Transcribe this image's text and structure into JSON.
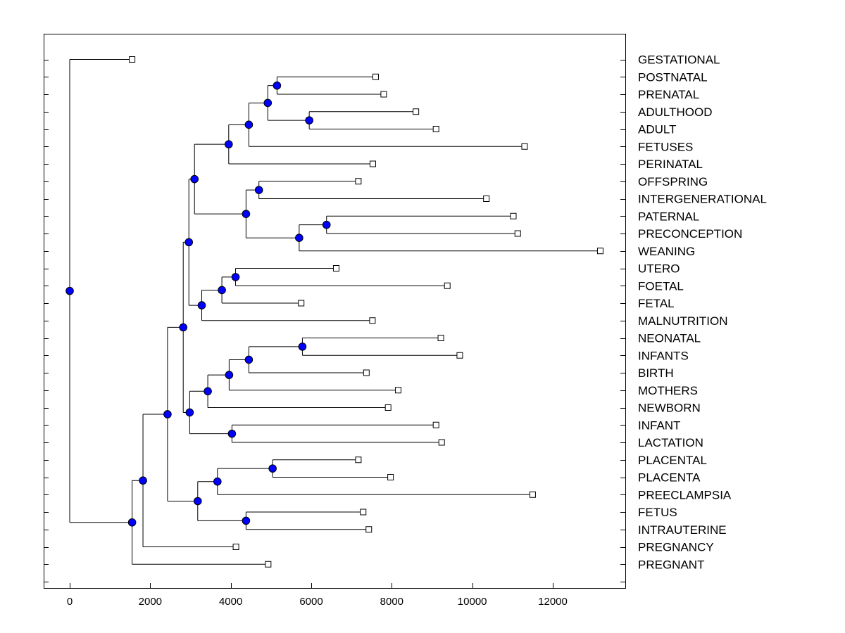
{
  "chart_data": {
    "type": "dendrogram",
    "title": "",
    "xlabel": "",
    "ylabel": "",
    "xlim": [
      -600,
      13700
    ],
    "x_ticks": [
      0,
      2000,
      4000,
      6000,
      8000,
      10000,
      12000
    ],
    "x_tick_labels": [
      "0",
      "2000",
      "4000",
      "6000",
      "8000",
      "10000",
      "12000"
    ],
    "leaves": [
      {
        "label": "GESTATIONAL",
        "value": 1550
      },
      {
        "label": "POSTNATAL",
        "value": 7600
      },
      {
        "label": "PRENATAL",
        "value": 7800
      },
      {
        "label": "ADULTHOOD",
        "value": 8600
      },
      {
        "label": "ADULT",
        "value": 9100
      },
      {
        "label": "FETUSES",
        "value": 11300
      },
      {
        "label": "PERINATAL",
        "value": 7530
      },
      {
        "label": "OFFSPRING",
        "value": 7170
      },
      {
        "label": "INTERGENERATIONAL",
        "value": 10350
      },
      {
        "label": "PATERNAL",
        "value": 11020
      },
      {
        "label": "PRECONCEPTION",
        "value": 11130
      },
      {
        "label": "WEANING",
        "value": 13180
      },
      {
        "label": "UTERO",
        "value": 6620
      },
      {
        "label": "FOETAL",
        "value": 9380
      },
      {
        "label": "FETAL",
        "value": 5750
      },
      {
        "label": "MALNUTRITION",
        "value": 7520
      },
      {
        "label": "NEONATAL",
        "value": 9220
      },
      {
        "label": "INFANTS",
        "value": 9690
      },
      {
        "label": "BIRTH",
        "value": 7370
      },
      {
        "label": "MOTHERS",
        "value": 8160
      },
      {
        "label": "NEWBORN",
        "value": 7910
      },
      {
        "label": "INFANT",
        "value": 9100
      },
      {
        "label": "LACTATION",
        "value": 9240
      },
      {
        "label": "PLACENTAL",
        "value": 7170
      },
      {
        "label": "PLACENTA",
        "value": 7970
      },
      {
        "label": "PREECLAMPSIA",
        "value": 11500
      },
      {
        "label": "FETUS",
        "value": 7290
      },
      {
        "label": "INTRAUTERINE",
        "value": 7430
      },
      {
        "label": "PREGNANCY",
        "value": 4130
      },
      {
        "label": "PREGNANT",
        "value": 4930
      }
    ],
    "merges": [
      {
        "id": "n1",
        "value": 5150,
        "children": [
          "POSTNATAL",
          "PRENATAL"
        ]
      },
      {
        "id": "n2",
        "value": 5950,
        "children": [
          "ADULTHOOD",
          "ADULT"
        ]
      },
      {
        "id": "n3",
        "value": 4920,
        "children": [
          "n1",
          "n2"
        ]
      },
      {
        "id": "n4",
        "value": 4450,
        "children": [
          "n3",
          "FETUSES"
        ]
      },
      {
        "id": "n5",
        "value": 3950,
        "children": [
          "n4",
          "PERINATAL"
        ]
      },
      {
        "id": "n6",
        "value": 4700,
        "children": [
          "OFFSPRING",
          "INTERGENERATIONAL"
        ]
      },
      {
        "id": "n7",
        "value": 6380,
        "children": [
          "PATERNAL",
          "PRECONCEPTION"
        ]
      },
      {
        "id": "n8",
        "value": 5700,
        "children": [
          "n7",
          "WEANING"
        ]
      },
      {
        "id": "n9",
        "value": 4380,
        "children": [
          "n6",
          "n8"
        ]
      },
      {
        "id": "n10",
        "value": 3100,
        "children": [
          "n5",
          "n9"
        ]
      },
      {
        "id": "n11",
        "value": 4120,
        "children": [
          "UTERO",
          "FOETAL"
        ]
      },
      {
        "id": "n12",
        "value": 3780,
        "children": [
          "n11",
          "FETAL"
        ]
      },
      {
        "id": "n13",
        "value": 3280,
        "children": [
          "n12",
          "MALNUTRITION"
        ]
      },
      {
        "id": "n14",
        "value": 2960,
        "children": [
          "n10",
          "n13"
        ]
      },
      {
        "id": "n15",
        "value": 5780,
        "children": [
          "NEONATAL",
          "INFANTS"
        ]
      },
      {
        "id": "n16",
        "value": 4450,
        "children": [
          "n15",
          "BIRTH"
        ]
      },
      {
        "id": "n17",
        "value": 3960,
        "children": [
          "n16",
          "MOTHERS"
        ]
      },
      {
        "id": "n18",
        "value": 3430,
        "children": [
          "n17",
          "NEWBORN"
        ]
      },
      {
        "id": "n19",
        "value": 4030,
        "children": [
          "INFANT",
          "LACTATION"
        ]
      },
      {
        "id": "n20",
        "value": 2980,
        "children": [
          "n18",
          "n19"
        ]
      },
      {
        "id": "n21",
        "value": 2820,
        "children": [
          "n14",
          "n20"
        ]
      },
      {
        "id": "n22",
        "value": 5040,
        "children": [
          "PLACENTAL",
          "PLACENTA"
        ]
      },
      {
        "id": "n23",
        "value": 3670,
        "children": [
          "n22",
          "PREECLAMPSIA"
        ]
      },
      {
        "id": "n24",
        "value": 4380,
        "children": [
          "FETUS",
          "INTRAUTERINE"
        ]
      },
      {
        "id": "n25",
        "value": 3180,
        "children": [
          "n23",
          "n24"
        ]
      },
      {
        "id": "n26",
        "value": 2430,
        "children": [
          "n21",
          "n25"
        ]
      },
      {
        "id": "n27",
        "value": 1820,
        "children": [
          "n26",
          "PREGNANCY"
        ]
      },
      {
        "id": "n28",
        "value": 1550,
        "children": [
          "n27",
          "PREGNANT"
        ]
      },
      {
        "id": "root",
        "value": 0,
        "children": [
          "GESTATIONAL",
          "n28"
        ]
      }
    ],
    "colors": {
      "axis": "#000000",
      "branch": "#000000",
      "internal_node": "#0000ff",
      "leaf_node_fill": "#ffffff"
    },
    "grid": false,
    "legend": "none"
  }
}
